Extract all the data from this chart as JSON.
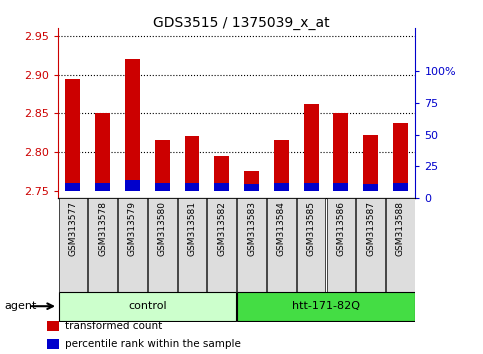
{
  "title": "GDS3515 / 1375039_x_at",
  "samples": [
    "GSM313577",
    "GSM313578",
    "GSM313579",
    "GSM313580",
    "GSM313581",
    "GSM313582",
    "GSM313583",
    "GSM313584",
    "GSM313585",
    "GSM313586",
    "GSM313587",
    "GSM313588"
  ],
  "transformed_count": [
    2.895,
    2.85,
    2.92,
    2.815,
    2.82,
    2.795,
    2.775,
    2.815,
    2.862,
    2.85,
    2.822,
    2.838
  ],
  "percentile_rank": [
    5,
    5,
    7,
    5,
    5,
    5,
    4,
    5,
    5,
    5,
    4,
    5
  ],
  "bar_bottom": 2.75,
  "percentile_scale": 0.002,
  "ylim_left": [
    2.74,
    2.96
  ],
  "ylim_right": [
    0,
    133.33
  ],
  "yticks_left": [
    2.75,
    2.8,
    2.85,
    2.9,
    2.95
  ],
  "yticks_right": [
    0,
    25,
    50,
    75,
    100
  ],
  "ytick_labels_right": [
    "0",
    "25",
    "50",
    "75",
    "100%"
  ],
  "red_color": "#cc0000",
  "blue_color": "#0000cc",
  "groups": [
    {
      "label": "control",
      "start": 0,
      "end": 5,
      "color": "#ccffcc"
    },
    {
      "label": "htt-171-82Q",
      "start": 6,
      "end": 11,
      "color": "#44dd44"
    }
  ],
  "agent_label": "agent",
  "legend_items": [
    {
      "label": "transformed count",
      "color": "#cc0000"
    },
    {
      "label": "percentile rank within the sample",
      "color": "#0000cc"
    }
  ],
  "grid_dotted_at": [
    2.8,
    2.85,
    2.9,
    2.95
  ],
  "bg_color": "#dddddd",
  "plot_bg": "white"
}
